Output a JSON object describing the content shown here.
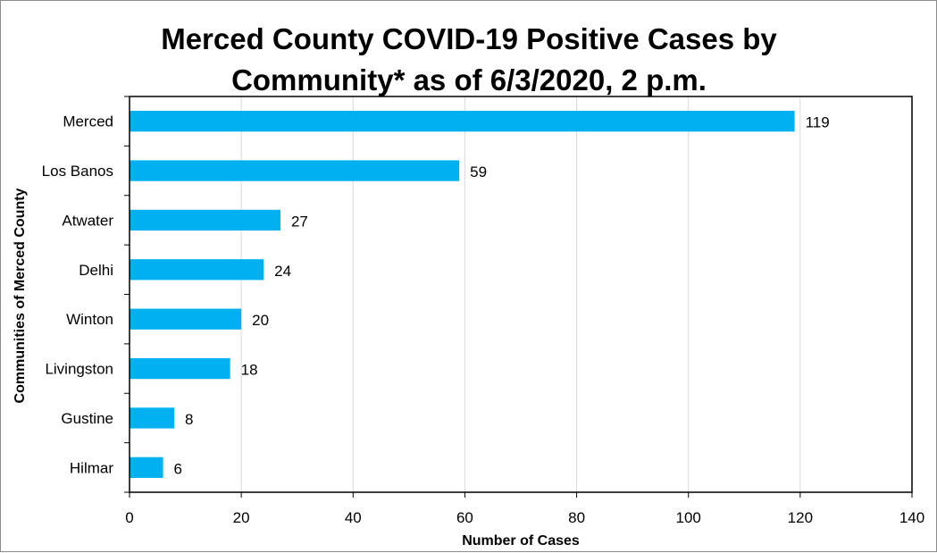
{
  "chart_data": {
    "type": "bar",
    "orientation": "horizontal",
    "title_line1": "Merced County COVID-19 Positive Cases by",
    "title_line2": "Community* as of 6/3/2020, 2 p.m.",
    "xlabel": "Number of Cases",
    "ylabel": "Communities of Merced County",
    "categories": [
      "Merced",
      "Los Banos",
      "Atwater",
      "Delhi",
      "Winton",
      "Livingston",
      "Gustine",
      "Hilmar"
    ],
    "values": [
      119,
      59,
      27,
      24,
      20,
      18,
      8,
      6
    ],
    "xlim": [
      0,
      140
    ],
    "xticks": [
      0,
      20,
      40,
      60,
      80,
      100,
      120,
      140
    ],
    "grid": true,
    "legend": "none",
    "bar_color": "#00B0F0"
  }
}
